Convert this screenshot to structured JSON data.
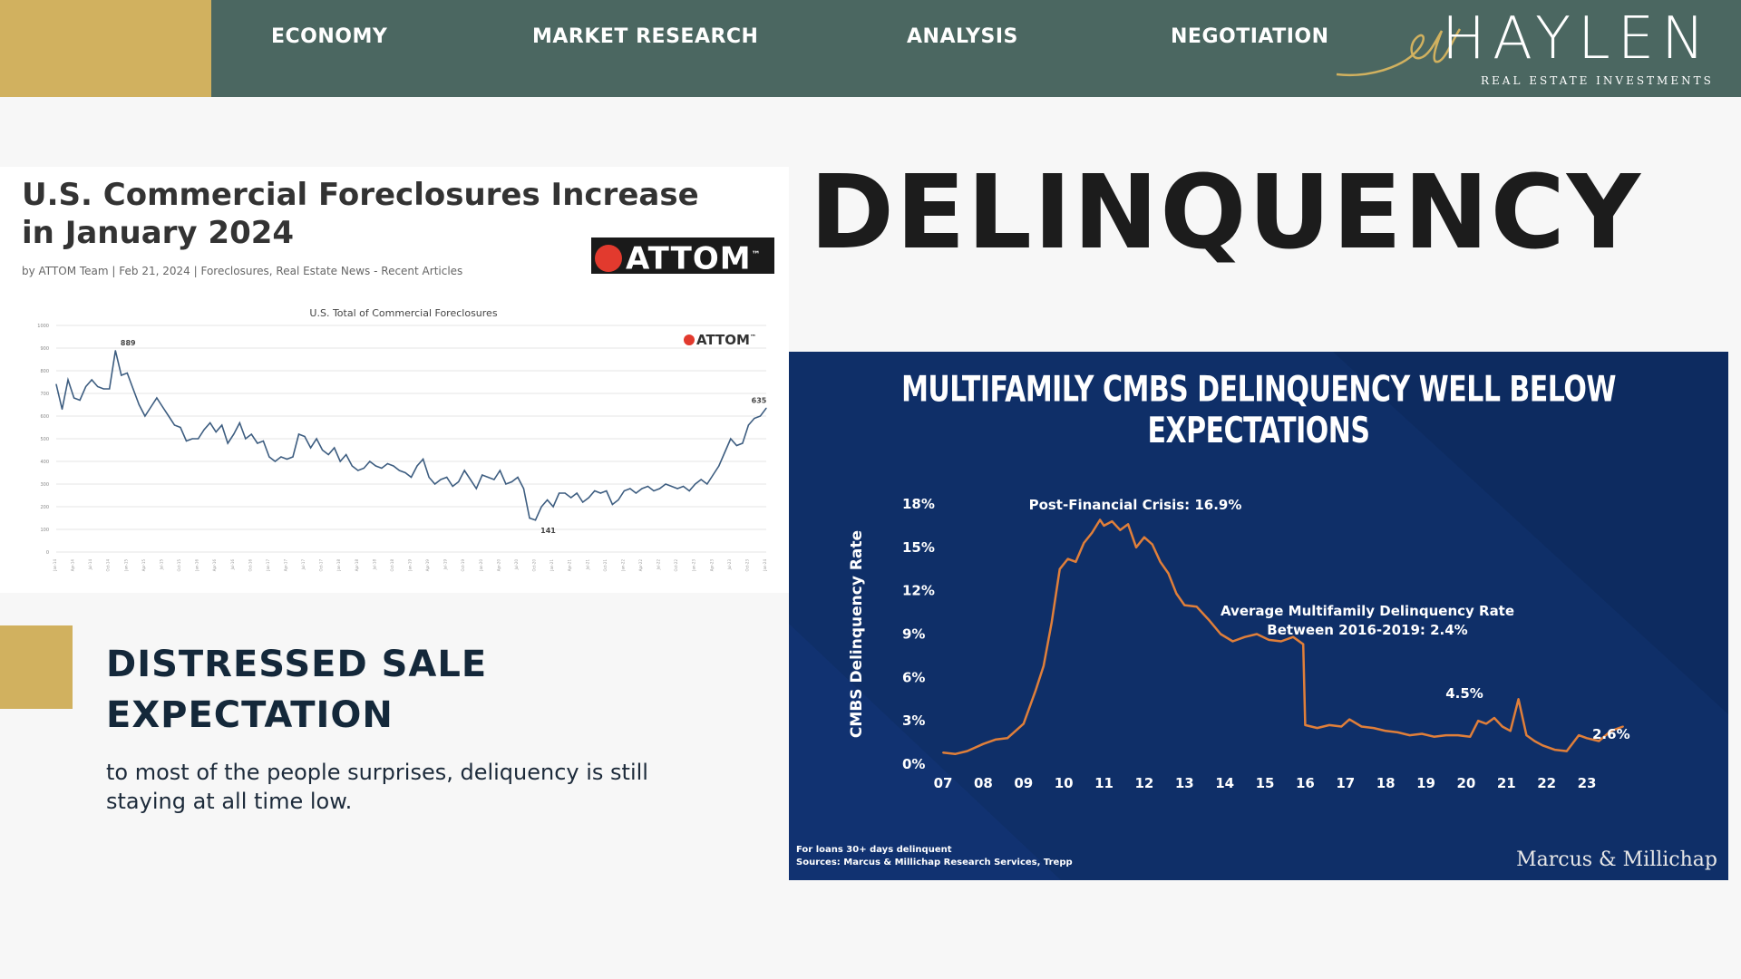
{
  "nav": {
    "items": [
      "ECONOMY",
      "MARKET RESEARCH",
      "ANALYSIS",
      "NEGOTIATION"
    ],
    "logo": "HAYLEN",
    "logo_sub": "REAL ESTATE INVESTMENTS"
  },
  "headline": "DELINQUENCY",
  "article": {
    "title": "U.S. Commercial Foreclosures Increase in January 2024",
    "byline": "by ATTOM Team",
    "date": "Feb 21, 2024",
    "categories": "Foreclosures, Real Estate News - Recent Articles",
    "badge": "ATTOM",
    "badge_tm": "™"
  },
  "section": {
    "title": "DISTRESSED SALE EXPECTATION",
    "body": "to most of the people surprises, deliquency is still staying at all time low."
  },
  "chart_data": [
    {
      "type": "line",
      "title": "U.S. Total of Commercial Foreclosures",
      "brand": "ATTOM",
      "xlabel": "",
      "ylabel": "",
      "ylim": [
        0,
        1000
      ],
      "yticks": [
        0,
        100,
        200,
        300,
        400,
        500,
        600,
        700,
        800,
        900,
        1000
      ],
      "x_start": "Jan-14",
      "x_end": "Jan-24",
      "annotations": [
        {
          "label": "889",
          "index": 10
        },
        {
          "label": "141",
          "index": 81
        },
        {
          "label": "635",
          "index": 120
        }
      ],
      "values": [
        740,
        630,
        760,
        680,
        670,
        730,
        760,
        730,
        720,
        720,
        889,
        780,
        790,
        720,
        650,
        600,
        640,
        680,
        640,
        600,
        560,
        550,
        490,
        500,
        500,
        540,
        570,
        530,
        560,
        480,
        520,
        570,
        500,
        520,
        480,
        490,
        420,
        400,
        420,
        410,
        420,
        520,
        510,
        460,
        500,
        450,
        430,
        460,
        400,
        430,
        380,
        360,
        370,
        400,
        380,
        370,
        390,
        380,
        360,
        350,
        330,
        380,
        410,
        330,
        300,
        320,
        330,
        290,
        310,
        360,
        320,
        280,
        340,
        330,
        320,
        360,
        300,
        310,
        330,
        280,
        150,
        141,
        200,
        230,
        200,
        260,
        260,
        240,
        260,
        220,
        240,
        270,
        260,
        270,
        210,
        230,
        270,
        280,
        260,
        280,
        290,
        270,
        280,
        300,
        290,
        280,
        290,
        270,
        300,
        320,
        300,
        340,
        380,
        440,
        500,
        470,
        480,
        560,
        590,
        600,
        635
      ],
      "line_color": "#3d5d80"
    },
    {
      "type": "line",
      "title": "MULTIFAMILY CMBS DELINQUENCY WELL BELOW EXPECTATIONS",
      "xlabel": "",
      "ylabel": "CMBS Delinquency Rate",
      "ylim": [
        0,
        18
      ],
      "yticks": [
        "0%",
        "3%",
        "6%",
        "9%",
        "12%",
        "15%",
        "18%"
      ],
      "xticks": [
        "07",
        "08",
        "09",
        "10",
        "11",
        "12",
        "13",
        "14",
        "15",
        "16",
        "17",
        "18",
        "19",
        "20",
        "21",
        "22",
        "23"
      ],
      "x": [
        2007.0,
        2007.3,
        2007.6,
        2008.0,
        2008.3,
        2008.6,
        2009.0,
        2009.3,
        2009.5,
        2009.7,
        2009.9,
        2010.1,
        2010.3,
        2010.5,
        2010.7,
        2010.9,
        2011.0,
        2011.2,
        2011.4,
        2011.6,
        2011.8,
        2012.0,
        2012.2,
        2012.4,
        2012.6,
        2012.8,
        2013.0,
        2013.3,
        2013.6,
        2013.9,
        2014.2,
        2014.5,
        2014.8,
        2015.1,
        2015.4,
        2015.7,
        2015.95,
        2016.0,
        2016.3,
        2016.6,
        2016.9,
        2017.1,
        2017.4,
        2017.7,
        2018.0,
        2018.3,
        2018.6,
        2018.9,
        2019.2,
        2019.5,
        2019.8,
        2020.1,
        2020.3,
        2020.5,
        2020.7,
        2020.9,
        2021.1,
        2021.3,
        2021.5,
        2021.7,
        2021.9,
        2022.2,
        2022.5,
        2022.8,
        2023.0,
        2023.3,
        2023.6,
        2023.9
      ],
      "values": [
        0.8,
        0.7,
        0.9,
        1.4,
        1.7,
        1.8,
        2.8,
        5.1,
        6.8,
        9.8,
        13.5,
        14.2,
        14.0,
        15.3,
        16.0,
        16.9,
        16.5,
        16.8,
        16.2,
        16.6,
        15.0,
        15.7,
        15.2,
        14.0,
        13.2,
        11.8,
        11.0,
        10.9,
        10.0,
        9.0,
        8.5,
        8.8,
        9.0,
        8.6,
        8.5,
        8.8,
        8.3,
        2.7,
        2.5,
        2.7,
        2.6,
        3.1,
        2.6,
        2.5,
        2.3,
        2.2,
        2.0,
        2.1,
        1.9,
        2.0,
        2.0,
        1.9,
        3.0,
        2.8,
        3.2,
        2.6,
        2.3,
        4.5,
        2.0,
        1.6,
        1.3,
        1.0,
        0.9,
        2.0,
        1.8,
        1.6,
        2.3,
        2.6
      ],
      "annotations": [
        {
          "label": "Post-Financial Crisis: 16.9%"
        },
        {
          "label": "Average Multifamily Delinquency Rate"
        },
        {
          "label": "Between 2016-2019: 2.4%"
        },
        {
          "label": "4.5%"
        },
        {
          "label": "2.6%"
        }
      ],
      "footnote": "For loans 30+ days delinquent",
      "source": "Sources: Marcus & Millichap Research Services, Trepp",
      "brand": "Marcus & Millichap",
      "line_color": "#e07f3a"
    }
  ]
}
